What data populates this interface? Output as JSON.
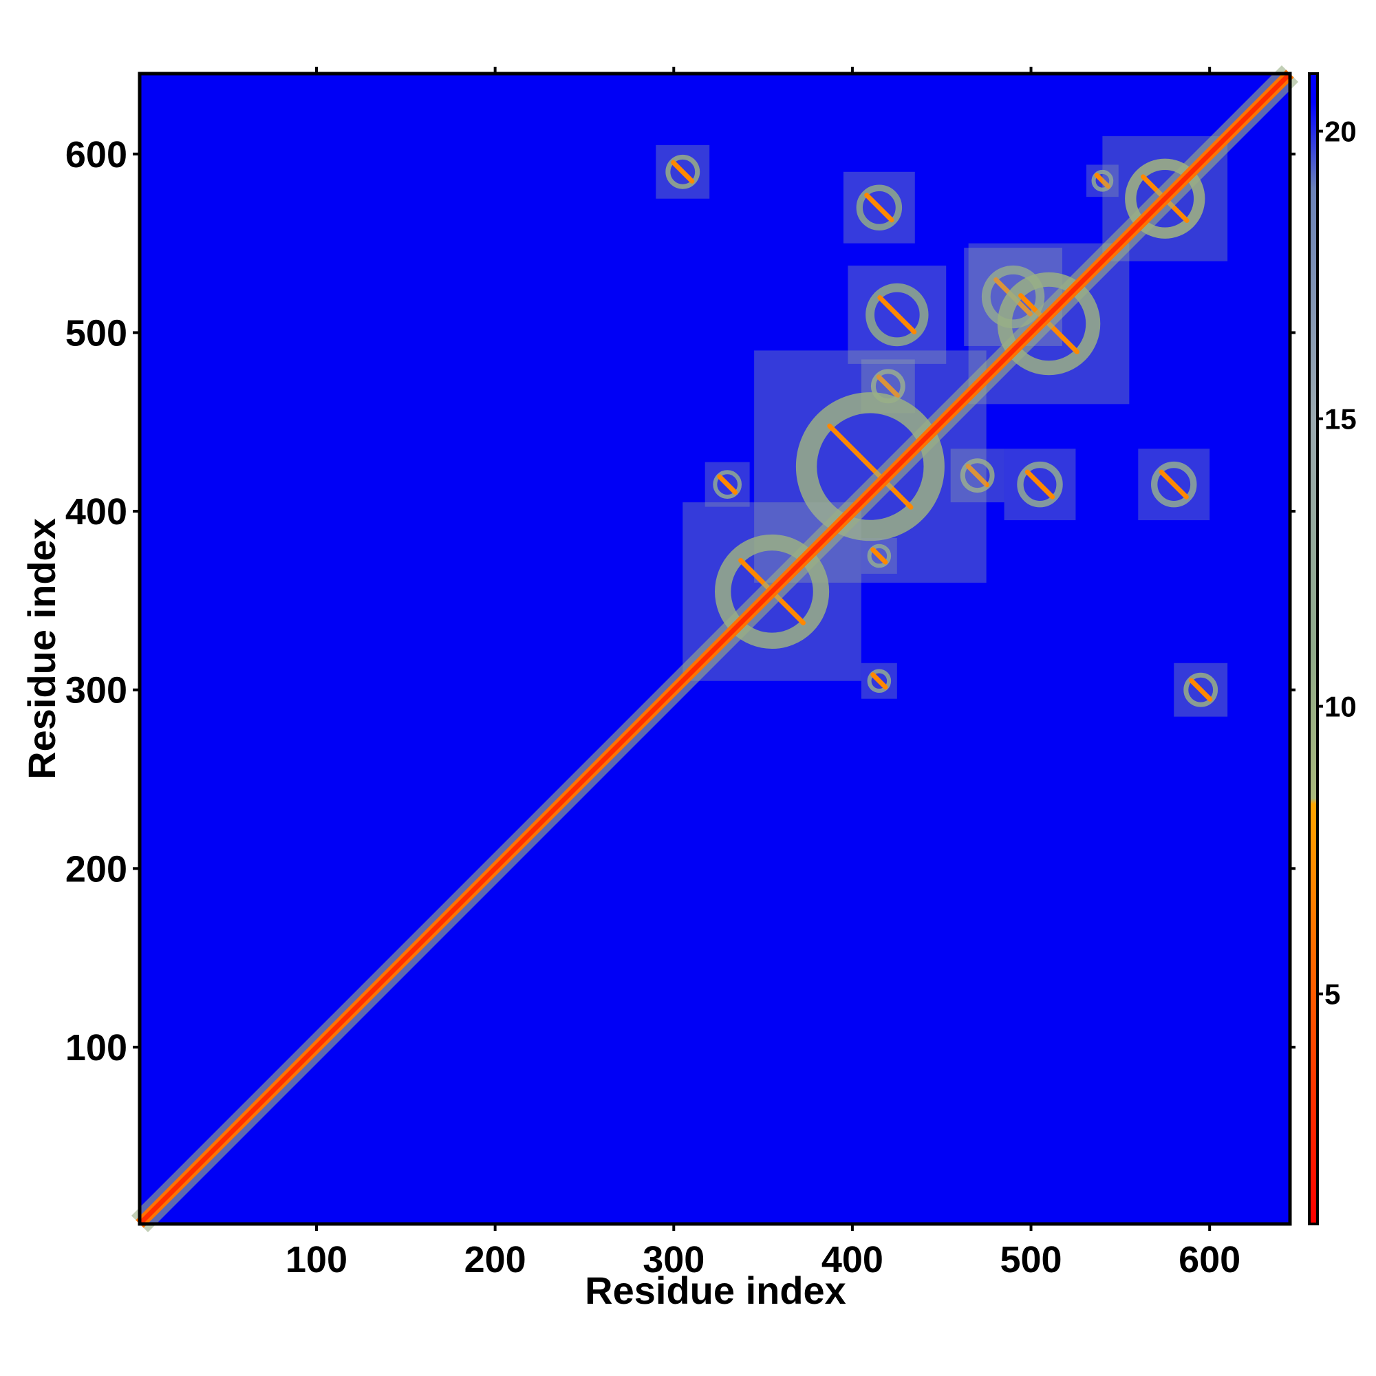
{
  "chart_data": {
    "type": "heatmap",
    "title": "",
    "xlabel": "Residue index",
    "ylabel": "Residue index",
    "xlim": [
      1,
      645
    ],
    "ylim": [
      1,
      645
    ],
    "x_ticks": [
      100,
      200,
      300,
      400,
      500,
      600
    ],
    "y_ticks": [
      100,
      200,
      300,
      400,
      500,
      600
    ],
    "grid": false,
    "colorbar": {
      "ticks": [
        5,
        10,
        15,
        20
      ],
      "range": [
        1,
        21
      ],
      "stops": [
        {
          "value": 1,
          "color": "#ff0000"
        },
        {
          "value": 4,
          "color": "#ff4500"
        },
        {
          "value": 8.3,
          "color": "#ffa500"
        },
        {
          "value": 8.4,
          "color": "#a8b87c"
        },
        {
          "value": 11,
          "color": "#8faa8a"
        },
        {
          "value": 15,
          "color": "#9aa9b0"
        },
        {
          "value": 19,
          "color": "#6b82b8"
        },
        {
          "value": 20.5,
          "color": "#0000ff"
        },
        {
          "value": 21,
          "color": "#0000ff"
        }
      ]
    },
    "background_value": 21,
    "background_color": "#0000f6",
    "diagonal": {
      "from": 1,
      "to": 645,
      "value": 3
    },
    "contact_clusters": [
      {
        "center": [
          305,
          590
        ],
        "size": 30,
        "value": 10,
        "name": "contact-305-590"
      },
      {
        "center": [
          595,
          300
        ],
        "size": 30,
        "value": 10,
        "name": "contact-595-300"
      },
      {
        "center": [
          415,
          570
        ],
        "size": 40,
        "value": 11,
        "name": "contact-415-570"
      },
      {
        "center": [
          540,
          585
        ],
        "size": 18,
        "value": 12,
        "name": "contact-540-585"
      },
      {
        "center": [
          575,
          575
        ],
        "size": 70,
        "value": 9,
        "name": "contact-575-575"
      },
      {
        "center": [
          425,
          510
        ],
        "size": 55,
        "value": 11,
        "name": "contact-425-510"
      },
      {
        "center": [
          490,
          520
        ],
        "size": 55,
        "value": 11,
        "name": "contact-490-520"
      },
      {
        "center": [
          510,
          505
        ],
        "size": 90,
        "value": 10,
        "name": "contact-510-505"
      },
      {
        "center": [
          420,
          470
        ],
        "size": 30,
        "value": 10,
        "name": "contact-420-470"
      },
      {
        "center": [
          470,
          420
        ],
        "size": 30,
        "value": 10,
        "name": "contact-470-420"
      },
      {
        "center": [
          410,
          425
        ],
        "size": 130,
        "value": 10,
        "name": "contact-410-425"
      },
      {
        "center": [
          505,
          415
        ],
        "size": 40,
        "value": 12,
        "name": "contact-505-415"
      },
      {
        "center": [
          580,
          415
        ],
        "size": 40,
        "value": 12,
        "name": "contact-580-415"
      },
      {
        "center": [
          330,
          415
        ],
        "size": 25,
        "value": 12,
        "name": "contact-330-415"
      },
      {
        "center": [
          355,
          355
        ],
        "size": 100,
        "value": 10,
        "name": "contact-355-355"
      },
      {
        "center": [
          415,
          375
        ],
        "size": 20,
        "value": 12,
        "name": "contact-415-375"
      },
      {
        "center": [
          415,
          305
        ],
        "size": 20,
        "value": 12,
        "name": "contact-415-305"
      }
    ]
  }
}
